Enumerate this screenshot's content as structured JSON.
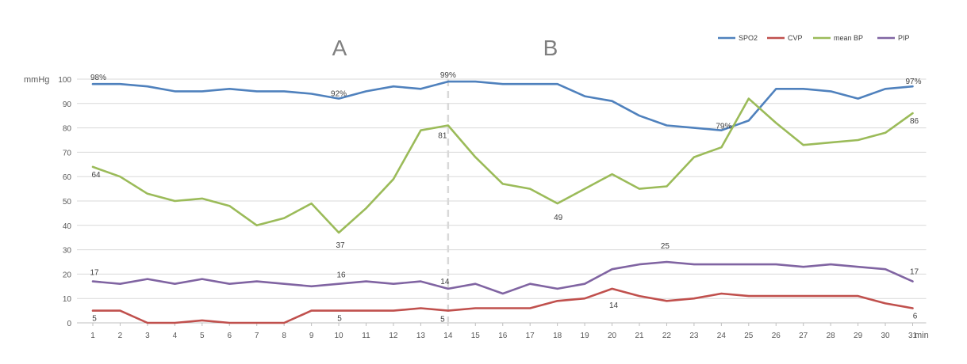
{
  "chart_data": {
    "type": "line",
    "x": [
      1,
      2,
      3,
      4,
      5,
      6,
      7,
      8,
      9,
      10,
      11,
      12,
      13,
      14,
      15,
      16,
      17,
      18,
      19,
      20,
      21,
      22,
      23,
      24,
      25,
      26,
      27,
      28,
      29,
      30,
      31
    ],
    "xlabel": "min",
    "ylabel": "mmHg",
    "ylim": [
      0,
      100
    ],
    "yticks": [
      0,
      10,
      20,
      30,
      40,
      50,
      60,
      70,
      80,
      90,
      100
    ],
    "grid": true,
    "legend_position": "top-right",
    "section_labels": [
      "A",
      "B"
    ],
    "section_divider_x": 14,
    "series": [
      {
        "name": "SPO2",
        "color": "#4f81bd",
        "values": [
          98,
          98,
          97,
          95,
          95,
          96,
          95,
          95,
          94,
          92,
          95,
          97,
          96,
          99,
          99,
          98,
          98,
          98,
          93,
          91,
          85,
          81,
          80,
          79,
          83,
          96,
          96,
          95,
          92,
          96,
          97
        ]
      },
      {
        "name": "CVP",
        "color": "#c0504d",
        "values": [
          5,
          5,
          0,
          0,
          1,
          0,
          0,
          0,
          5,
          5,
          5,
          5,
          6,
          5,
          6,
          6,
          6,
          9,
          10,
          14,
          11,
          9,
          10,
          12,
          11,
          11,
          11,
          11,
          11,
          8,
          6
        ]
      },
      {
        "name": "mean BP",
        "color": "#9bbb59",
        "values": [
          64,
          60,
          53,
          50,
          51,
          48,
          40,
          43,
          49,
          37,
          47,
          59,
          79,
          81,
          68,
          57,
          55,
          49,
          55,
          61,
          55,
          56,
          68,
          72,
          92,
          82,
          73,
          74,
          75,
          78,
          86
        ]
      },
      {
        "name": "PIP",
        "color": "#8064a2",
        "values": [
          17,
          16,
          18,
          16,
          18,
          16,
          17,
          16,
          15,
          16,
          17,
          16,
          17,
          14,
          16,
          12,
          16,
          14,
          16,
          22,
          24,
          25,
          24,
          24,
          24,
          24,
          23,
          24,
          23,
          22,
          17
        ]
      }
    ],
    "annotations": [
      {
        "series": 0,
        "x": 1,
        "text": "98%"
      },
      {
        "series": 0,
        "x": 10,
        "text": "92%"
      },
      {
        "series": 0,
        "x": 14,
        "text": "99%"
      },
      {
        "series": 0,
        "x": 24,
        "text": "79%"
      },
      {
        "series": 0,
        "x": 31,
        "text": "97%"
      },
      {
        "series": 2,
        "x": 1,
        "text": "64"
      },
      {
        "series": 2,
        "x": 10,
        "text": "37"
      },
      {
        "series": 2,
        "x": 14,
        "text": "81"
      },
      {
        "series": 2,
        "x": 18,
        "text": "49"
      },
      {
        "series": 2,
        "x": 31,
        "text": "86"
      },
      {
        "series": 3,
        "x": 1,
        "text": "17"
      },
      {
        "series": 3,
        "x": 10,
        "text": "16"
      },
      {
        "series": 3,
        "x": 14,
        "text": "14"
      },
      {
        "series": 3,
        "x": 22,
        "text": "25"
      },
      {
        "series": 3,
        "x": 31,
        "text": "17"
      },
      {
        "series": 1,
        "x": 1,
        "text": "5"
      },
      {
        "series": 1,
        "x": 10,
        "text": "5"
      },
      {
        "series": 1,
        "x": 14,
        "text": "5"
      },
      {
        "series": 1,
        "x": 20,
        "text": "14"
      },
      {
        "series": 1,
        "x": 31,
        "text": "6"
      }
    ]
  }
}
